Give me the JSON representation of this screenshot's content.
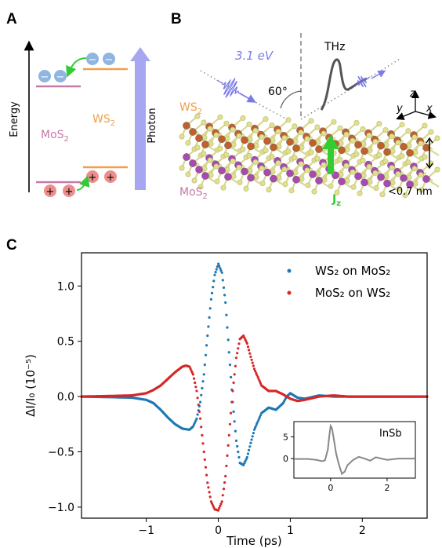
{
  "panels": {
    "a": {
      "letter": "A",
      "energy_label": "Energy",
      "photon_label": "Photon",
      "mos2_main": "MoS",
      "ws2_main": "WS",
      "sub": "2",
      "electron_sign": "−",
      "hole_sign": "+",
      "colors": {
        "mos2": "#c47aa8",
        "ws2": "#f0a04b",
        "arrow": "#a7a6f0",
        "electron": "#8fb5e0",
        "hole": "#ec8e8e",
        "transfer": "#33cc33"
      }
    },
    "b": {
      "letter": "B",
      "energy": "3.1 eV",
      "thz": "THz",
      "angle": "60°",
      "ws2_main": "WS",
      "mos2_main": "MoS",
      "sub": "2",
      "jz_main": "J",
      "jz_sub": "z",
      "thickness": "<0.7 nm",
      "axis_z": "z",
      "axis_y": "y",
      "axis_x": "x",
      "colors": {
        "pump": "#7b7be8",
        "thz": "#555555",
        "jz": "#33cc33",
        "ws2_atom": "#c0602c",
        "mos2_atom": "#a84ab0",
        "s_atom": "#e0e090"
      }
    },
    "c": {
      "letter": "C",
      "inset_label": "InSb"
    }
  },
  "chart_data": [
    {
      "type": "scatter",
      "xlabel": "Time (ps)",
      "ylabel": "ΔI/I₀ (10⁻⁵)",
      "xlim": [
        -1.9,
        2.9
      ],
      "ylim": [
        -1.1,
        1.3
      ],
      "xticks": [
        -1,
        0,
        1,
        2
      ],
      "yticks": [
        -1.0,
        -0.5,
        0.0,
        0.5,
        1.0
      ],
      "xtick_labels": [
        "−1",
        "0",
        "1",
        "2"
      ],
      "ytick_labels": [
        "−1.0",
        "−0.5",
        "0.0",
        "0.5",
        "1.0"
      ],
      "legend_position": "top-right",
      "series": [
        {
          "name": "WS₂ on MoS₂",
          "color": "#1f77b4",
          "x": [
            -1.9,
            -1.5,
            -1.2,
            -1.0,
            -0.9,
            -0.8,
            -0.7,
            -0.6,
            -0.5,
            -0.4,
            -0.35,
            -0.3,
            -0.25,
            -0.2,
            -0.15,
            -0.1,
            -0.05,
            0.0,
            0.05,
            0.1,
            0.15,
            0.2,
            0.25,
            0.3,
            0.35,
            0.4,
            0.45,
            0.5,
            0.6,
            0.7,
            0.8,
            0.9,
            0.95,
            1.0,
            1.1,
            1.2,
            1.4,
            1.6,
            1.8,
            2.0,
            2.4,
            2.9
          ],
          "y": [
            0.0,
            -0.005,
            -0.01,
            -0.03,
            -0.06,
            -0.12,
            -0.19,
            -0.25,
            -0.29,
            -0.3,
            -0.27,
            -0.2,
            -0.05,
            0.2,
            0.55,
            0.88,
            1.1,
            1.2,
            1.12,
            0.85,
            0.4,
            -0.05,
            -0.4,
            -0.6,
            -0.62,
            -0.55,
            -0.42,
            -0.3,
            -0.15,
            -0.1,
            -0.12,
            -0.06,
            0.0,
            0.03,
            -0.01,
            -0.02,
            0.01,
            0.0,
            0.0,
            0.0,
            0.0,
            0.0
          ]
        },
        {
          "name": "MoS₂ on WS₂",
          "color": "#d62728",
          "x": [
            -1.9,
            -1.5,
            -1.2,
            -1.0,
            -0.9,
            -0.8,
            -0.7,
            -0.6,
            -0.5,
            -0.45,
            -0.4,
            -0.35,
            -0.3,
            -0.25,
            -0.2,
            -0.15,
            -0.1,
            -0.05,
            0.0,
            0.05,
            0.1,
            0.15,
            0.2,
            0.25,
            0.3,
            0.35,
            0.4,
            0.45,
            0.5,
            0.6,
            0.7,
            0.8,
            0.9,
            1.0,
            1.1,
            1.2,
            1.4,
            1.6,
            1.8,
            2.0,
            2.4,
            2.9
          ],
          "y": [
            0.0,
            0.005,
            0.01,
            0.03,
            0.06,
            0.1,
            0.16,
            0.22,
            0.27,
            0.28,
            0.27,
            0.2,
            0.05,
            -0.2,
            -0.5,
            -0.78,
            -0.95,
            -1.02,
            -1.03,
            -0.95,
            -0.72,
            -0.35,
            0.05,
            0.35,
            0.52,
            0.55,
            0.48,
            0.36,
            0.25,
            0.1,
            0.05,
            0.05,
            0.02,
            -0.02,
            -0.04,
            -0.03,
            0.0,
            0.01,
            0.0,
            0.0,
            0.0,
            0.0
          ]
        }
      ]
    },
    {
      "type": "line",
      "title": "InSb",
      "xlim": [
        -1.3,
        3.0
      ],
      "ylim": [
        -4.5,
        8.5
      ],
      "xticks": [
        0,
        2
      ],
      "yticks": [
        0,
        5
      ],
      "xtick_labels": [
        "0",
        "2"
      ],
      "ytick_labels": [
        "0",
        "5"
      ],
      "series": [
        {
          "color": "#888888",
          "x": [
            -1.3,
            -0.8,
            -0.5,
            -0.3,
            -0.2,
            -0.1,
            -0.05,
            0.0,
            0.05,
            0.1,
            0.2,
            0.3,
            0.4,
            0.5,
            0.6,
            0.8,
            1.0,
            1.2,
            1.4,
            1.6,
            1.8,
            2.0,
            2.4,
            3.0
          ],
          "y": [
            -0.1,
            -0.1,
            -0.3,
            -0.6,
            -0.4,
            2.0,
            5.0,
            7.5,
            7.0,
            5.0,
            1.0,
            -1.5,
            -3.5,
            -3.0,
            -1.5,
            -0.3,
            0.4,
            0.0,
            -0.5,
            0.3,
            0.0,
            -0.3,
            0.0,
            0.0
          ]
        }
      ]
    }
  ]
}
